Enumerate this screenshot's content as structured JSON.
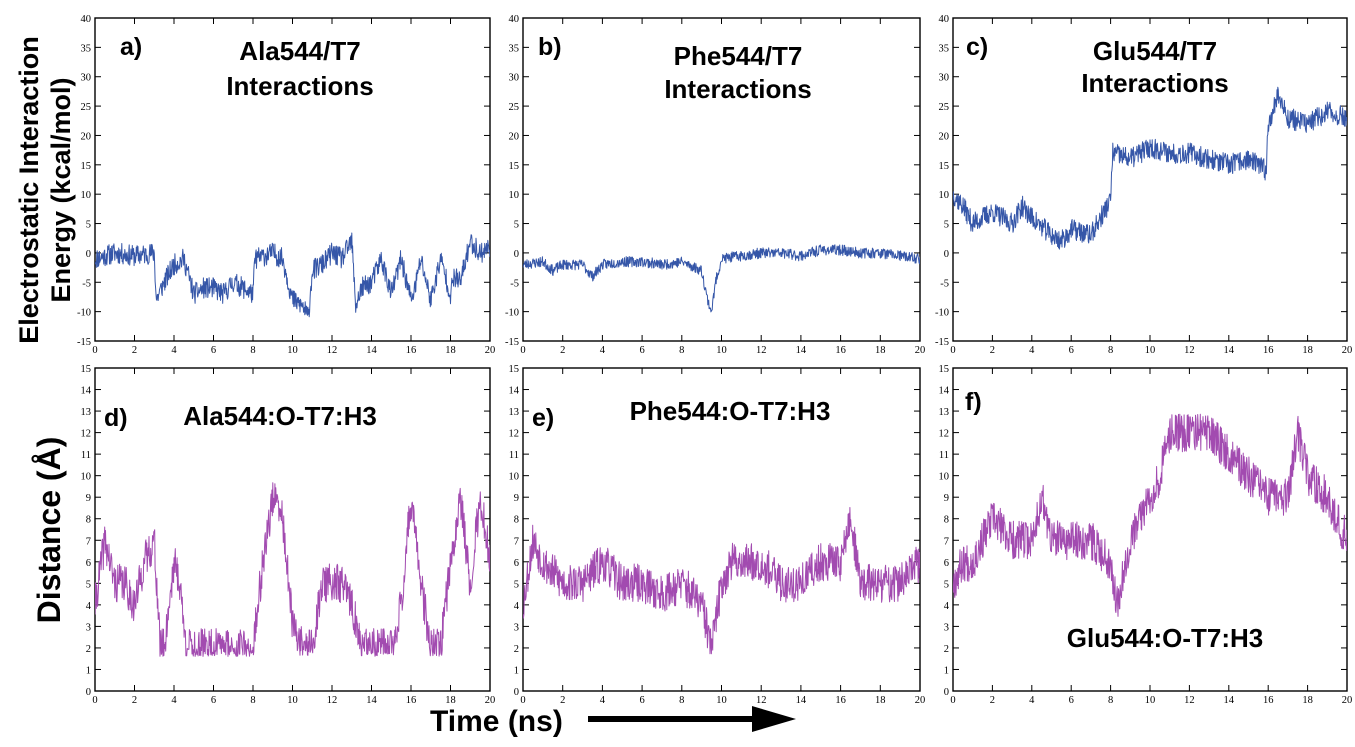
{
  "figure": {
    "y_label_top_line1": "Electrostatic Interaction",
    "y_label_top_line2": "Energy (kcal/mol)",
    "y_label_bottom": "Distance (Å)",
    "x_label": "Time (ns)"
  },
  "colors": {
    "energy": "#3556a8",
    "distance": "#a24bb0"
  },
  "chart_data": [
    {
      "id": "a",
      "type": "line",
      "tag": "a)",
      "title_lines": [
        "Ala544/T7",
        "Interactions"
      ],
      "xlim": [
        0,
        20
      ],
      "ylim": [
        -15,
        40
      ],
      "xticks": [
        0,
        2,
        4,
        6,
        8,
        10,
        12,
        14,
        16,
        18,
        20
      ],
      "yticks": [
        -15,
        -10,
        -5,
        0,
        5,
        10,
        15,
        20,
        25,
        30,
        35,
        40
      ],
      "series": [
        {
          "x": [
            0,
            1,
            2,
            3,
            3.1,
            3.5,
            4,
            4.5,
            5,
            5.5,
            6,
            6.5,
            7,
            7.5,
            8,
            8.1,
            9,
            9.5,
            10,
            10.5,
            10.8,
            11,
            11.5,
            12,
            12.5,
            13,
            13.2,
            13.5,
            14,
            14.5,
            15,
            15.5,
            16,
            16.2,
            16.5,
            17,
            17.5,
            18,
            18.2,
            18.5,
            19,
            19.5,
            20
          ],
          "y": [
            -1,
            0,
            -0.5,
            0,
            -8,
            -5,
            -2,
            -1,
            -7,
            -6,
            -6,
            -7,
            -5,
            -6,
            -7,
            -1,
            0,
            -1,
            -8,
            -9,
            -11,
            -3,
            -2,
            0,
            -1,
            2,
            -9,
            -6,
            -5,
            -1,
            -7,
            -1,
            -8,
            -6,
            -1,
            -8,
            -1,
            -7,
            -4,
            -5,
            2,
            0,
            1
          ]
        }
      ]
    },
    {
      "id": "b",
      "type": "line",
      "tag": "b)",
      "title_lines": [
        "Phe544/T7",
        "Interactions"
      ],
      "xlim": [
        0,
        20
      ],
      "ylim": [
        -15,
        40
      ],
      "xticks": [
        0,
        2,
        4,
        6,
        8,
        10,
        12,
        14,
        16,
        18,
        20
      ],
      "yticks": [
        -15,
        -10,
        -5,
        0,
        5,
        10,
        15,
        20,
        25,
        30,
        35,
        40
      ],
      "series": [
        {
          "x": [
            0,
            1,
            1.5,
            2,
            3,
            3.5,
            4,
            5,
            6,
            7,
            8,
            9,
            9.3,
            9.5,
            9.7,
            10,
            11,
            12,
            13,
            14,
            15,
            16,
            17,
            18,
            19,
            20
          ],
          "y": [
            -2,
            -1.5,
            -3,
            -2,
            -2,
            -4,
            -2,
            -1.5,
            -1.5,
            -2,
            -1.5,
            -3,
            -8,
            -10,
            -5,
            -1,
            -0.5,
            0,
            0,
            -0.5,
            0.5,
            0.5,
            0,
            0,
            -0.5,
            -1
          ]
        }
      ]
    },
    {
      "id": "c",
      "type": "line",
      "tag": "c)",
      "title_lines": [
        "Glu544/T7",
        "Interactions"
      ],
      "xlim": [
        0,
        20
      ],
      "ylim": [
        -15,
        40
      ],
      "xticks": [
        0,
        2,
        4,
        6,
        8,
        10,
        12,
        14,
        16,
        18,
        20
      ],
      "yticks": [
        -15,
        -10,
        -5,
        0,
        5,
        10,
        15,
        20,
        25,
        30,
        35,
        40
      ],
      "series": [
        {
          "x": [
            0,
            0.5,
            1,
            2,
            3,
            3.5,
            4,
            5,
            5.5,
            6,
            7,
            7.5,
            8,
            8.1,
            9,
            10,
            11,
            12,
            13,
            14,
            15,
            15.9,
            16,
            16.5,
            17,
            18,
            19,
            20
          ],
          "y": [
            10,
            8,
            5,
            7,
            5,
            8,
            6,
            3,
            2,
            4,
            3,
            6,
            9,
            17,
            16,
            18,
            17,
            17,
            16,
            15,
            16,
            14,
            22,
            27,
            23,
            22,
            24,
            23
          ]
        }
      ]
    },
    {
      "id": "d",
      "type": "line",
      "tag": "d)",
      "title_lines": [
        "Ala544:O-T7:H3"
      ],
      "xlim": [
        0,
        20
      ],
      "ylim": [
        0,
        15
      ],
      "xticks": [
        0,
        2,
        4,
        6,
        8,
        10,
        12,
        14,
        16,
        18,
        20
      ],
      "yticks": [
        0,
        1,
        2,
        3,
        4,
        5,
        6,
        7,
        8,
        9,
        10,
        11,
        12,
        13,
        14,
        15
      ],
      "series": [
        {
          "x": [
            0,
            0.5,
            1,
            1.5,
            2,
            2.5,
            3,
            3.3,
            3.5,
            4,
            4.3,
            4.6,
            5,
            6,
            7,
            8,
            8.5,
            9,
            9.5,
            10,
            10.5,
            11,
            11.5,
            12,
            12.5,
            13,
            13.5,
            14,
            15,
            15.5,
            16,
            16.5,
            17,
            17.5,
            18,
            18.5,
            19,
            19.5,
            20
          ],
          "y": [
            4,
            7,
            5,
            5,
            4,
            6,
            7,
            2,
            2,
            6,
            5,
            2,
            2,
            2,
            2,
            2,
            6,
            9,
            8,
            3,
            2,
            2,
            5,
            5,
            5,
            4,
            2,
            2,
            2,
            4,
            9,
            5,
            2,
            2,
            6,
            9,
            5,
            9,
            6
          ]
        }
      ]
    },
    {
      "id": "e",
      "type": "line",
      "tag": "e)",
      "title_lines": [
        "Phe544:O-T7:H3"
      ],
      "xlim": [
        0,
        20
      ],
      "ylim": [
        0,
        15
      ],
      "xticks": [
        0,
        2,
        4,
        6,
        8,
        10,
        12,
        14,
        16,
        18,
        20
      ],
      "yticks": [
        0,
        1,
        2,
        3,
        4,
        5,
        6,
        7,
        8,
        9,
        10,
        11,
        12,
        13,
        14,
        15
      ],
      "series": [
        {
          "x": [
            0,
            0.5,
            1,
            2,
            3,
            4,
            5,
            6,
            7,
            8,
            9,
            9.5,
            10,
            10.5,
            11,
            12,
            13,
            14,
            15,
            16,
            16.5,
            17,
            18,
            19,
            20
          ],
          "y": [
            4,
            7,
            6,
            5,
            5,
            6,
            5,
            5,
            4.5,
            5,
            4,
            2,
            5,
            6,
            6,
            6,
            5,
            5,
            6,
            6,
            8,
            5,
            5,
            5,
            6
          ]
        }
      ]
    },
    {
      "id": "f",
      "type": "line",
      "tag": "f)",
      "title_lines": [
        "Glu544:O-T7:H3"
      ],
      "xlim": [
        0,
        20
      ],
      "ylim": [
        0,
        15
      ],
      "xticks": [
        0,
        2,
        4,
        6,
        8,
        10,
        12,
        14,
        16,
        18,
        20
      ],
      "yticks": [
        0,
        1,
        2,
        3,
        4,
        5,
        6,
        7,
        8,
        9,
        10,
        11,
        12,
        13,
        14,
        15
      ],
      "series": [
        {
          "x": [
            0,
            0.5,
            1,
            1.5,
            2,
            3,
            4,
            4.5,
            5,
            6,
            7,
            8,
            8.3,
            9,
            9.5,
            10,
            10.5,
            11,
            12,
            13,
            14,
            15,
            16,
            17,
            17.5,
            18,
            19,
            20
          ],
          "y": [
            5,
            6,
            6,
            7,
            8,
            7,
            7,
            9,
            7,
            7,
            7,
            6,
            4,
            7,
            8,
            9,
            10,
            12,
            12,
            12,
            11,
            10,
            9,
            9,
            12,
            10,
            9,
            7
          ]
        }
      ]
    }
  ]
}
